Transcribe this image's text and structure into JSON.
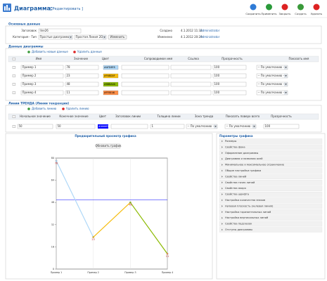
{
  "header": {
    "title": "Диаграмма:",
    "subtitle": "[ Редактировать ]"
  },
  "toolbar": [
    "Сохранить",
    "Применить",
    "Закрыть",
    "Создать",
    "Удалить"
  ],
  "main": {
    "section": "Основные данные",
    "title_label": "Заголовок",
    "title_value": "line26",
    "category_label": "Категория - Тип",
    "category": "Простые диаграммы",
    "chart_type": "Простая Линия 2D",
    "change_button": "Изменить",
    "created_label": "Создано",
    "created": "4.1.2012 11:32",
    "created_by": "Administrator",
    "modified_label": "Изменено",
    "modified": "4.1.2012 20:29",
    "modified_by": "Administrator"
  },
  "data_table": {
    "section": "Данные диаграммы",
    "add": "Добавить новые данные",
    "remove": "Удалить данные",
    "headers": [
      "Имя",
      "Значение",
      "Цвет",
      "Сопроводимое имя",
      "Ссылка",
      "Прозрачность",
      "Показать имя"
    ],
    "rows": [
      {
        "alpha": "100",
        "show_name": "-- По умолчанию --"
      },
      {
        "alpha": "100",
        "show_name": "-- По умолчанию --"
      },
      {
        "alpha": "100",
        "show_name": "-- По умолчанию --"
      },
      {
        "alpha": "100",
        "show_name": "-- По умолчанию --"
      }
    ]
  },
  "trend_table": {
    "section": "Линии ТРЕНДА (Линии тенденции)",
    "add": "Добавить линию",
    "remove": "Удалить линию",
    "headers": [
      "Начальное значение",
      "Конечное значение",
      "Цвет",
      "Заголовок линии",
      "Толщина линии",
      "Зона тренда",
      "Показать поверх всего",
      "Прозрачность"
    ],
    "row": {
      "thickness": "1",
      "zone": "-- По умолчанию --",
      "on_top": "-- По умолчанию --",
      "alpha": "100"
    }
  },
  "preview": {
    "title": "Предварительный просмотр графика",
    "refresh": "Обновить график"
  },
  "params": {
    "title": "Параметры графика",
    "items": [
      "Размеры",
      "Свойства фона",
      "Оформление диаграммы",
      "Диаграмма и названия осей",
      "Минимальное и максимальное ограничение",
      "Общие настройки графика",
      "Свойства линий",
      "Свойства точек линий",
      "Свойства якоря",
      "Свойства шрифта",
      "Настройка количества знаков",
      "Нулевая плоскость (нулевая линия)",
      "Настройка горизонтальных линий",
      "Настройка вертикальных линий",
      "Свойства подсказок",
      "Отступы диаграммы"
    ]
  },
  "chart_data": {
    "type": "line",
    "categories": [
      "Пример 1",
      "Пример 2",
      "Пример 3",
      "Пример 4"
    ],
    "values": [
      78,
      23,
      48,
      11
    ],
    "colors": [
      "#AFD8F8",
      "#F6BD0F",
      "#8BBA00",
      "#FF8E46"
    ],
    "ylim": [
      0,
      80
    ],
    "yticks": [
      0,
      16,
      32,
      48,
      64,
      80
    ],
    "trendline": {
      "start": 50,
      "end": 50,
      "color": "#0000FF"
    }
  }
}
